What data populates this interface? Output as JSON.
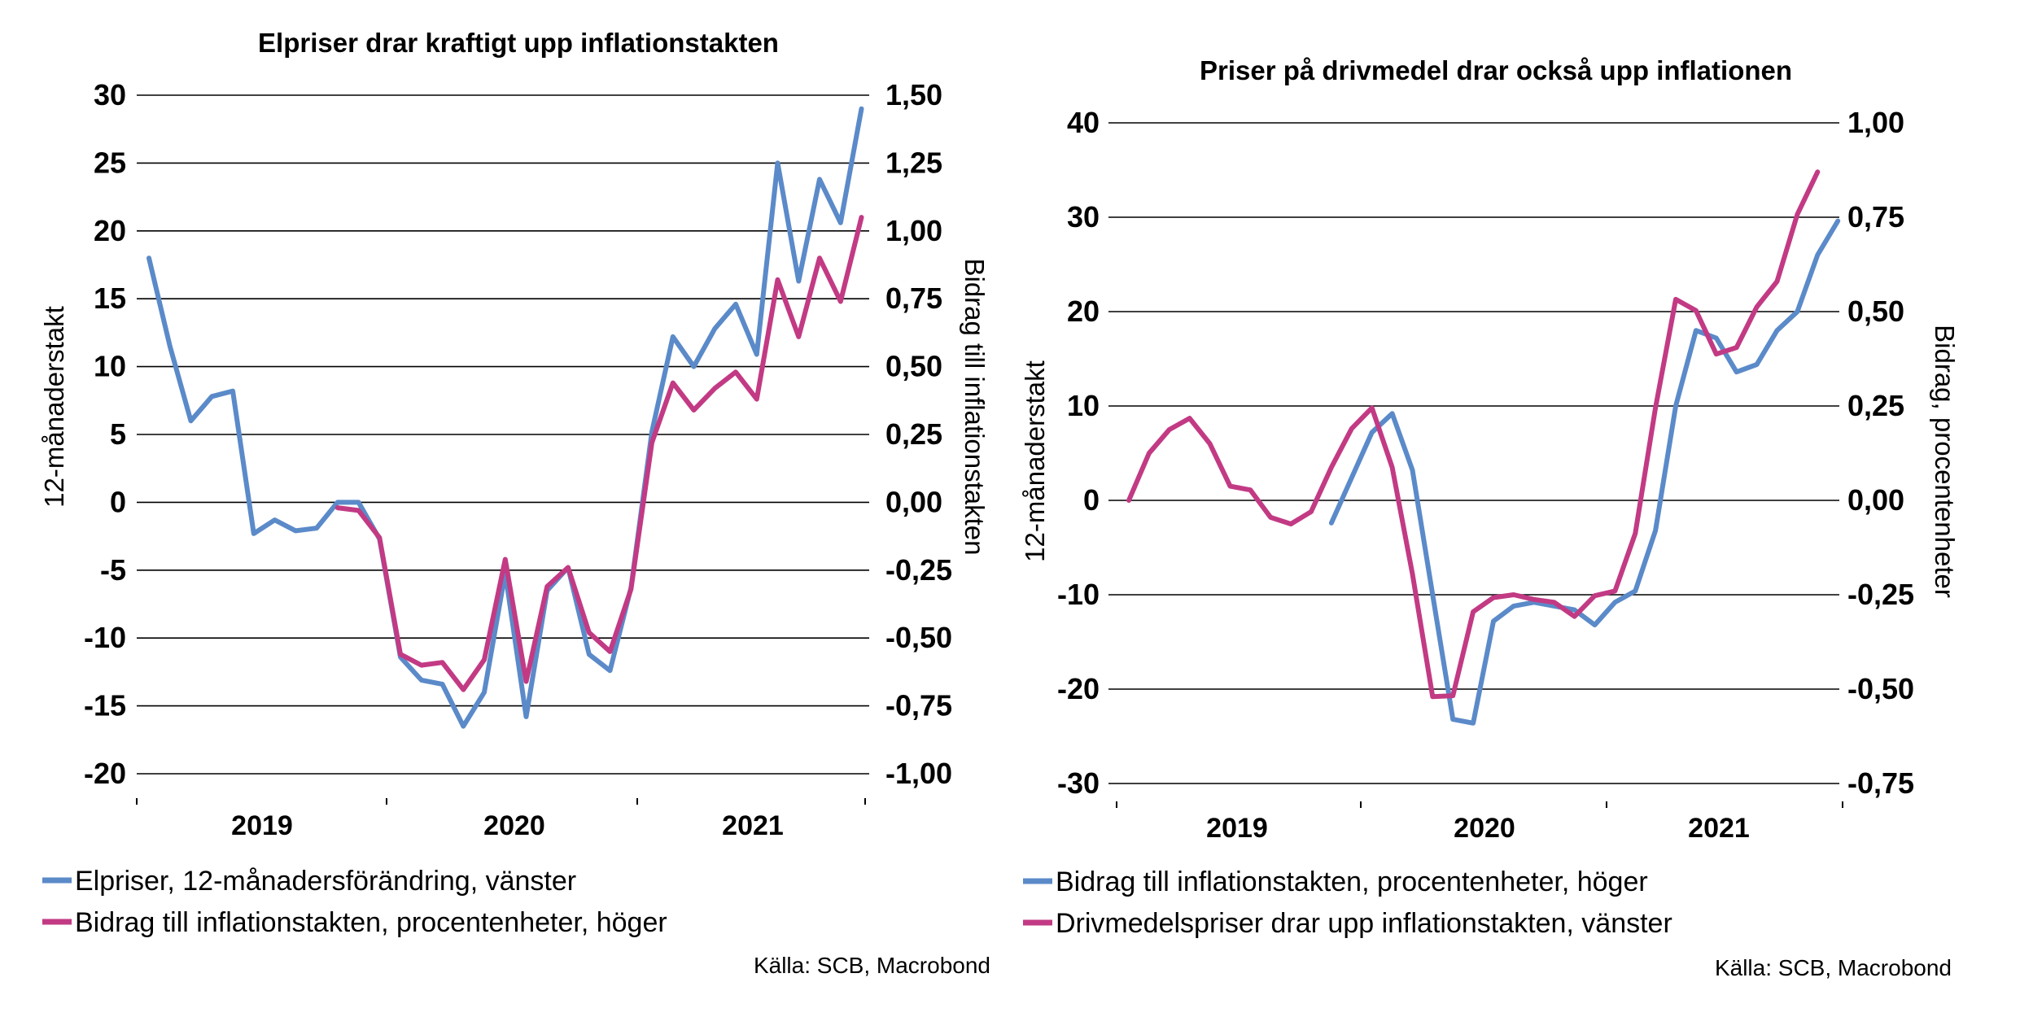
{
  "colors": {
    "blue": "#5b8ac9",
    "magenta": "#c23a84",
    "grid": "#000000"
  },
  "chart_data": [
    {
      "type": "line",
      "title": "Elpriser drar kraftigt upp inflationstakten",
      "ylabel_left": "12-månaderstakt",
      "ylabel_right": "Bidrag till inflationstakten",
      "yticks_left": [
        "30",
        "25",
        "20",
        "15",
        "10",
        "5",
        "0",
        "-5",
        "-10",
        "-15",
        "-20"
      ],
      "yticks_right": [
        "1,50",
        "1,25",
        "1,00",
        "0,75",
        "0,50",
        "0,25",
        "0,00",
        "-0,25",
        "-0,50",
        "-0,75",
        "-1,00"
      ],
      "ylim_left": [
        -20,
        30
      ],
      "ylim_right": [
        -1.0,
        1.5
      ],
      "years": [
        "2019",
        "2020",
        "2021"
      ],
      "grid": true,
      "series": [
        {
          "name": "Elpriser, 12-månadersförändring, vänster",
          "axis": "left",
          "color": "blue",
          "x_start": 0,
          "values": [
            18,
            11.5,
            6,
            7.8,
            8.2,
            -2.3,
            -1.3,
            -2.1,
            -1.9,
            0,
            0,
            -2.7,
            -11.4,
            -13.1,
            -13.4,
            -16.5,
            -14,
            -5.2,
            -15.8,
            -6.5,
            -4.8,
            -11.2,
            -12.4,
            -6.3,
            5.2,
            12.2,
            10,
            12.8,
            14.6,
            10.9,
            25,
            16.3,
            23.8,
            20.6,
            29
          ]
        },
        {
          "name": "Bidrag till inflationstakten, procentenheter, höger",
          "axis": "right",
          "color": "magenta",
          "x_start": 9,
          "values": [
            -0.02,
            -0.03,
            -0.13,
            -0.56,
            -0.6,
            -0.59,
            -0.69,
            -0.58,
            -0.21,
            -0.66,
            -0.31,
            -0.24,
            -0.48,
            -0.55,
            -0.32,
            0.22,
            0.44,
            0.34,
            0.42,
            0.48,
            0.38,
            0.82,
            0.61,
            0.9,
            0.74,
            1.05
          ]
        }
      ]
    },
    {
      "type": "line",
      "title": "Priser på drivmedel drar också upp inflationen",
      "ylabel_left": "12-månaderstakt",
      "ylabel_right": "Bidrag, procentenheter",
      "yticks_left": [
        "40",
        "30",
        "20",
        "10",
        "0",
        "-10",
        "-20",
        "-30"
      ],
      "yticks_right": [
        "1,00",
        "0,75",
        "0,50",
        "0,25",
        "0,00",
        "-0,25",
        "-0,50",
        "-0,75"
      ],
      "ylim_left": [
        -30,
        40
      ],
      "ylim_right": [
        -0.75,
        1.0
      ],
      "years": [
        "2019",
        "2020",
        "2021"
      ],
      "grid": true,
      "series": [
        {
          "name": "Bidrag till inflationstakten, procentenheter, höger",
          "axis": "right",
          "color": "blue",
          "x_start": 10,
          "values": [
            -0.06,
            0.06,
            0.18,
            0.23,
            0.08,
            -0.25,
            -0.58,
            -0.59,
            -0.32,
            -0.28,
            -0.27,
            -0.28,
            -0.29,
            -0.33,
            -0.27,
            -0.24,
            -0.08,
            0.25,
            0.45,
            0.43,
            0.34,
            0.36,
            0.45,
            0.5,
            0.65,
            0.74
          ]
        },
        {
          "name": "Drivmedelspriser drar upp inflationstakten, vänster",
          "axis": "left",
          "color": "magenta",
          "x_start": 0,
          "values": [
            0,
            5,
            7.5,
            8.7,
            6,
            1.5,
            1.1,
            -1.8,
            -2.5,
            -1.2,
            3.5,
            7.6,
            9.8,
            3.5,
            -7.8,
            -20.8,
            -20.7,
            -11.8,
            -10.3,
            -10,
            -10.5,
            -10.8,
            -12.3,
            -10.1,
            -9.6,
            -3.5,
            9.8,
            21.3,
            20.1,
            15.5,
            16.2,
            20.5,
            23.2,
            30.3,
            34.8
          ]
        }
      ]
    }
  ],
  "legends": [
    [
      "Elpriser, 12-månadersförändring, vänster",
      "Bidrag till inflationstakten, procentenheter, höger"
    ],
    [
      "Bidrag till inflationstakten, procentenheter, höger",
      "Drivmedelspriser drar upp inflationstakten, vänster"
    ]
  ],
  "sources": [
    "Källa: SCB, Macrobond",
    "Källa: SCB, Macrobond"
  ]
}
